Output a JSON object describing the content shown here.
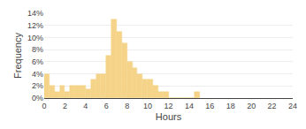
{
  "chart_data": {
    "type": "histogram",
    "bins": [
      0,
      0.5,
      1,
      1.5,
      2,
      2.5,
      3,
      3.5,
      4,
      4.5,
      5,
      5.5,
      6,
      6.5,
      7,
      7.5,
      8,
      8.5,
      9,
      9.5,
      10,
      10.5,
      11,
      11.5,
      12,
      12.5,
      13,
      13.5,
      14,
      14.5,
      15
    ],
    "values": [
      4,
      2,
      1,
      2,
      1,
      2,
      2,
      2,
      1.5,
      3,
      4,
      4,
      7,
      13,
      11,
      9,
      6,
      5,
      4,
      3,
      3,
      2,
      1,
      1,
      0,
      0,
      0,
      0,
      0,
      1
    ],
    "color": "#f5d48a",
    "xlabel": "Hours",
    "ylabel": "Frequency",
    "xlim": [
      0,
      24
    ],
    "xticks": [
      0,
      2,
      4,
      6,
      8,
      10,
      12,
      14,
      16,
      18,
      20,
      22,
      24
    ],
    "ylim": [
      0,
      14
    ],
    "yticks": [
      {
        "value": 0,
        "label": "0%"
      },
      {
        "value": 2,
        "label": "2%"
      },
      {
        "value": 4,
        "label": "4%"
      },
      {
        "value": 6,
        "label": "6%"
      },
      {
        "value": 8,
        "label": "8%"
      },
      {
        "value": 10,
        "label": "10%"
      },
      {
        "value": 12,
        "label": "12%"
      },
      {
        "value": 14,
        "label": "14%"
      }
    ],
    "grid": true
  }
}
